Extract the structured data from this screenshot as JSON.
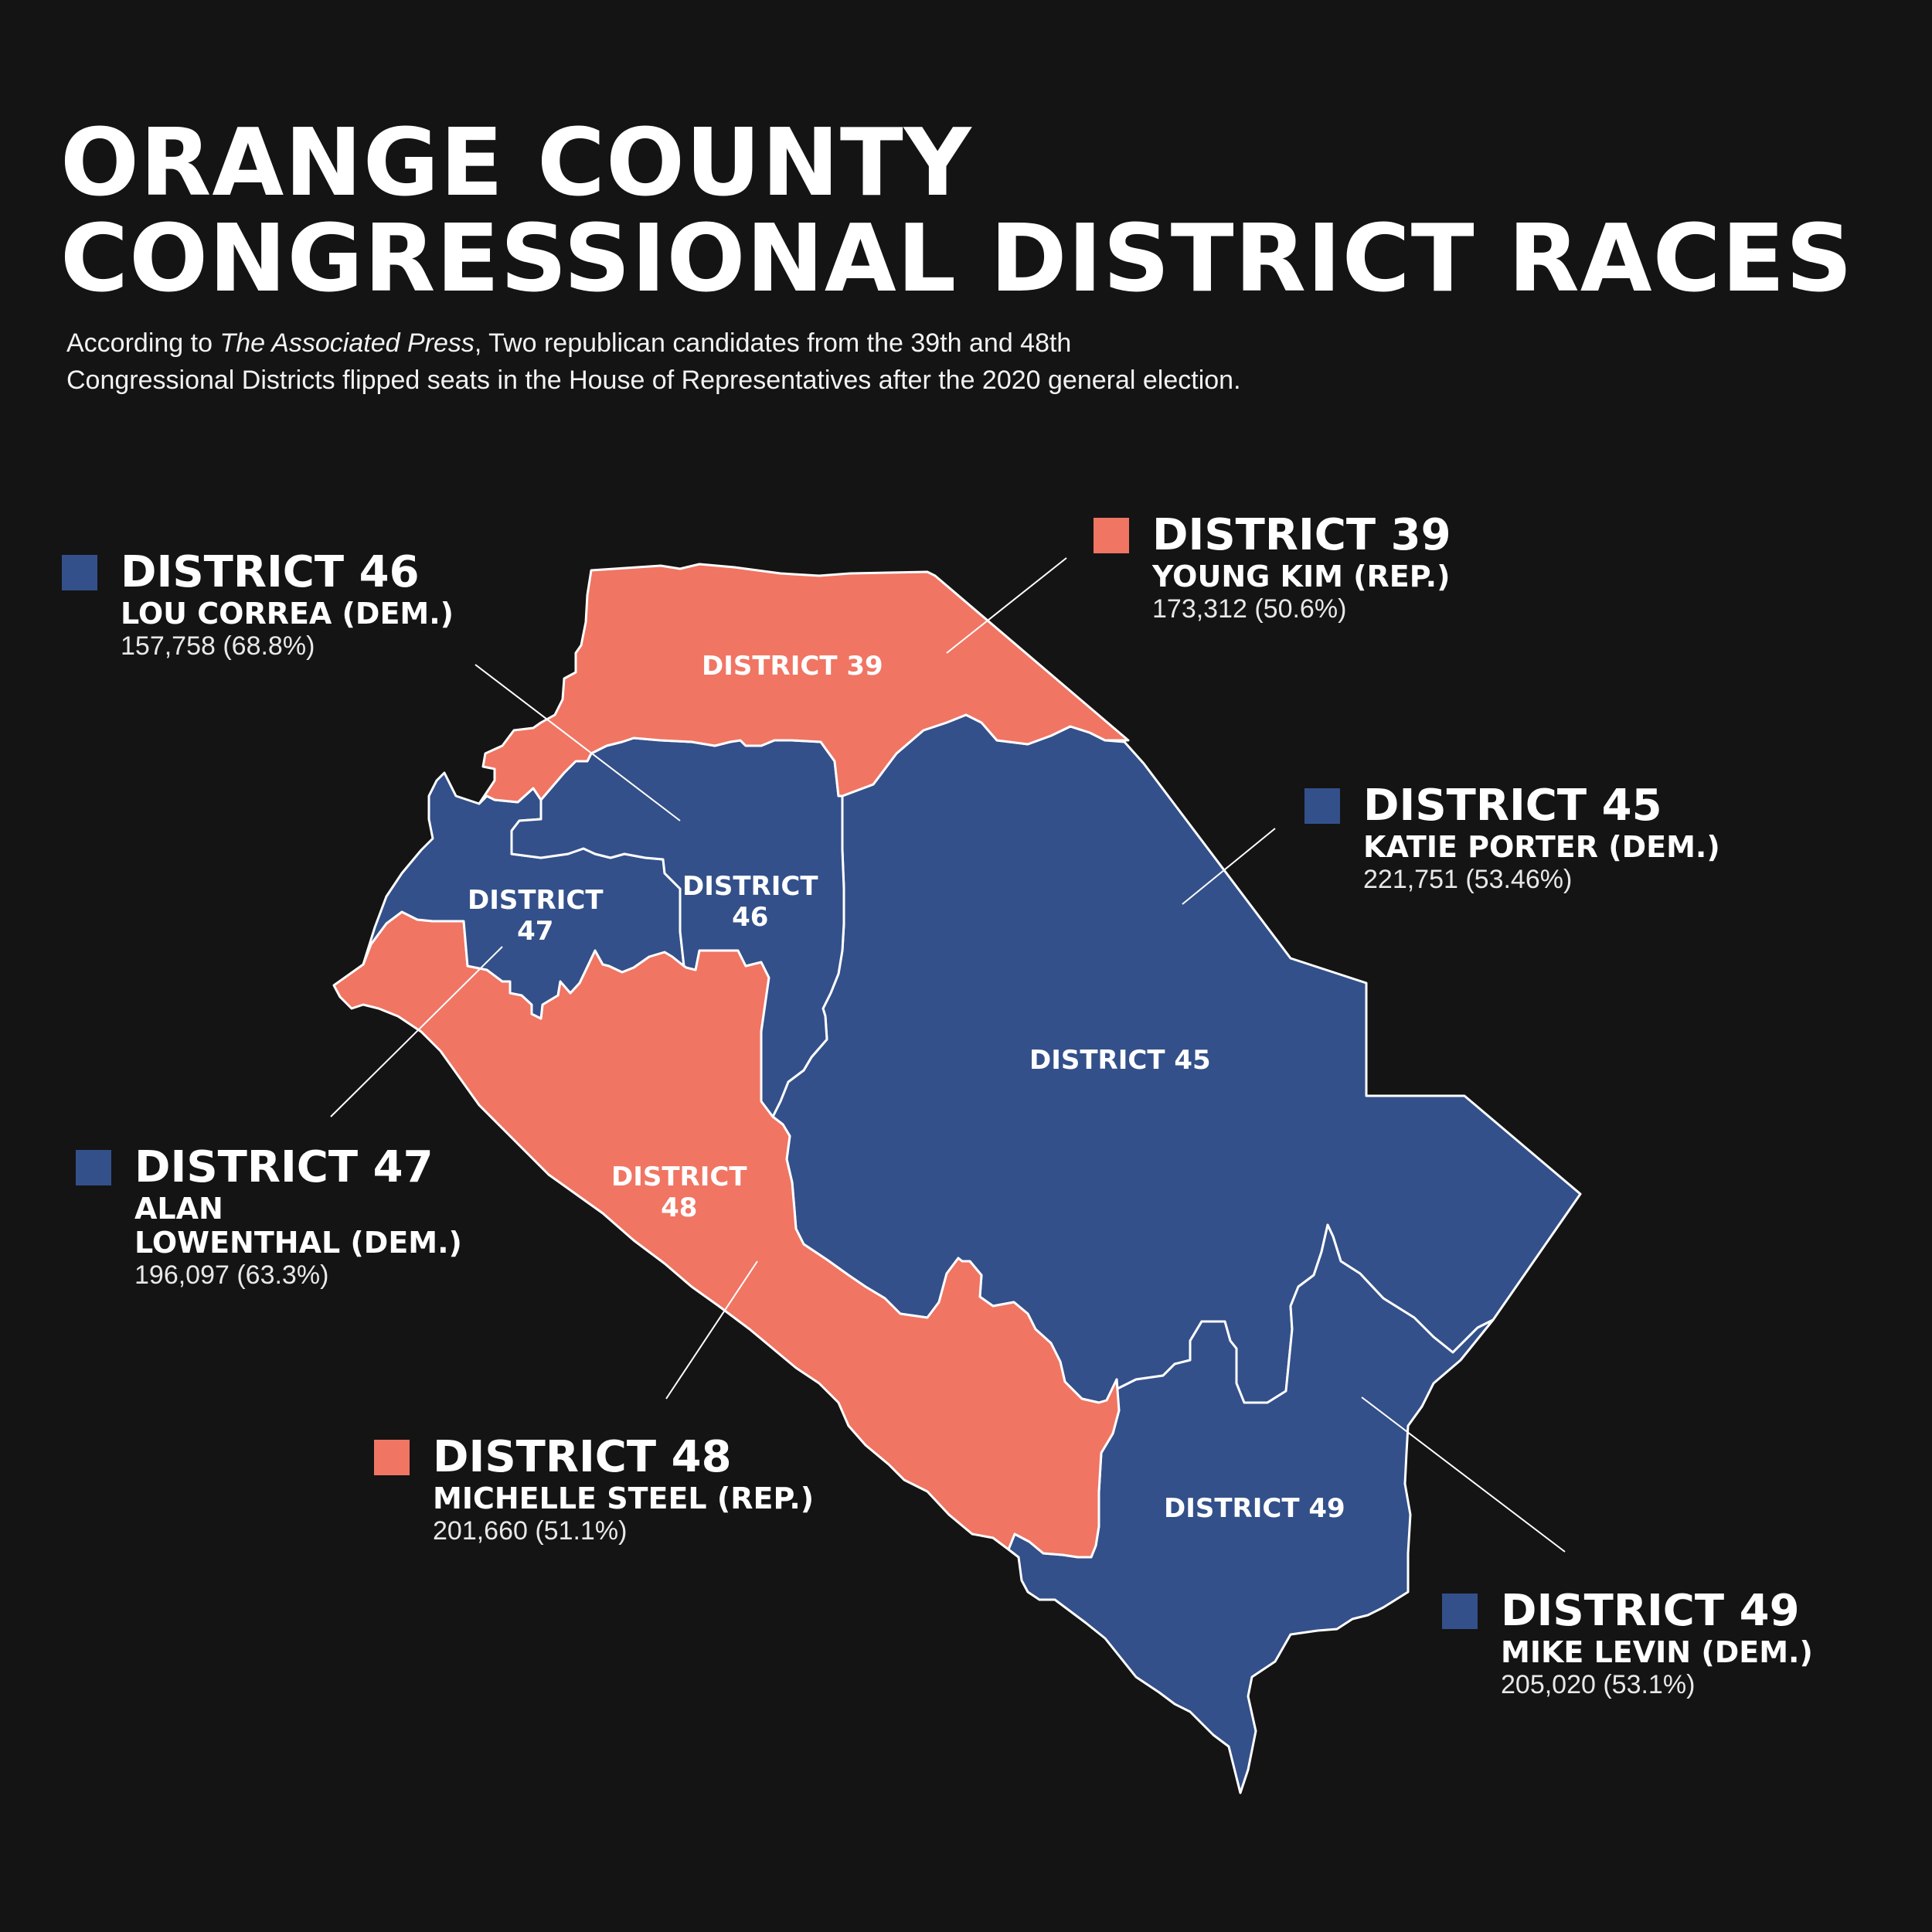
{
  "title": {
    "line1": "ORANGE COUNTY",
    "line2": "CONGRESSIONAL DISTRICT RACES"
  },
  "subtitle": {
    "line1_prefix": "According to ",
    "line1_source": "The Associated Press",
    "line1_suffix": ", Two republican candidates from the 39th and 48th",
    "line2": "Congressional Districts flipped seats in the House of Representatives after the 2020 general election."
  },
  "colors": {
    "background": "#141414",
    "democrat": "#33508a",
    "republican": "#f07563",
    "border": "#ffffff"
  },
  "districts": {
    "d39": {
      "legend_title": "DISTRICT 39",
      "candidate": "YOUNG KIM (REP.)",
      "votes": "173,312 (50.6%)",
      "party": "republican",
      "map_label": "DISTRICT 39"
    },
    "d46": {
      "legend_title": "DISTRICT 46",
      "candidate": "LOU CORREA (DEM.)",
      "votes": "157,758 (68.8%)",
      "party": "democrat",
      "map_label_1": "DISTRICT",
      "map_label_2": "46"
    },
    "d45": {
      "legend_title": "DISTRICT 45",
      "candidate": "KATIE PORTER (DEM.)",
      "votes": "221,751 (53.46%)",
      "party": "democrat",
      "map_label": "DISTRICT 45"
    },
    "d47": {
      "legend_title": "DISTRICT 47",
      "candidate_line1": "ALAN",
      "candidate_line2": "LOWENTHAL (DEM.)",
      "votes": "196,097 (63.3%)",
      "party": "democrat",
      "map_label_1": "DISTRICT",
      "map_label_2": "47"
    },
    "d48": {
      "legend_title": "DISTRICT 48",
      "candidate": "MICHELLE STEEL (REP.)",
      "votes": "201,660 (51.1%)",
      "party": "republican",
      "map_label_1": "DISTRICT",
      "map_label_2": "48"
    },
    "d49": {
      "legend_title": "DISTRICT 49",
      "candidate": "MIKE LEVIN (DEM.)",
      "votes": "205,020 (53.1%)",
      "party": "democrat",
      "map_label": "DISTRICT 49"
    }
  }
}
